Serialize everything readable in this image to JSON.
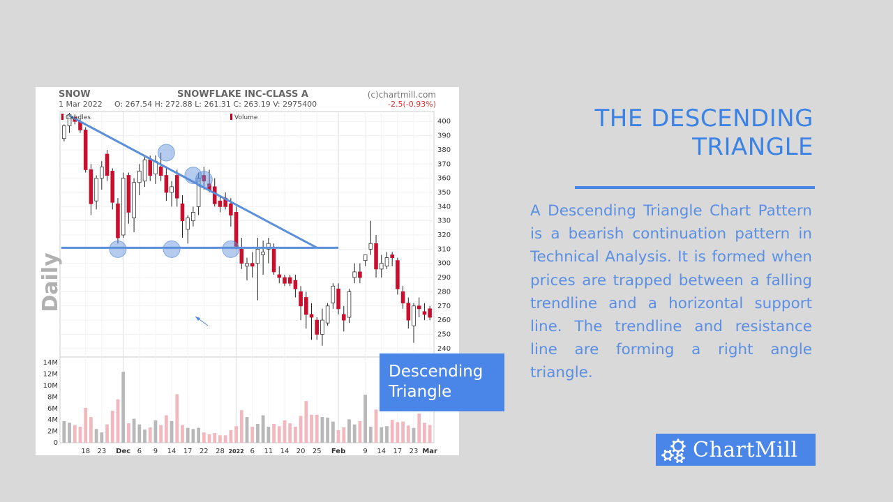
{
  "chart_header": {
    "ticker": "SNOW",
    "company": "SNOWFLAKE INC-CLASS A",
    "source": "(c)chartmill.com",
    "date": "1 Mar 2022",
    "ohlcv": "O: 267.54  H: 272.88  L: 261.31  C: 263.19  V: 2975400",
    "change": "-2.5(-0.93%)",
    "change_color": "#e03030",
    "legend_candles": "Candles",
    "legend_volume": "Volume",
    "period_label": "Daily"
  },
  "slide": {
    "title_line1": "THE DESCENDING",
    "title_line2": "TRIANGLE",
    "description": "A Descending Triangle Chart Pattern is a bearish continuation pattern in Technical Analysis. It is formed when prices are trapped between a falling trendline and a horizontal support line. The trendline and resistance line are forming a right angle triangle.",
    "callout_line1": "Descending",
    "callout_line2": "Triangle",
    "logo_text": "ChartMill",
    "accent": "#4a86e8"
  },
  "chart_data": {
    "type": "candlestick",
    "title": "SNOWFLAKE INC-CLASS A",
    "y_ticks": [
      400,
      390,
      380,
      370,
      360,
      350,
      340,
      330,
      320,
      310,
      300,
      290,
      280,
      270,
      260,
      250,
      240
    ],
    "ylim": [
      235,
      407
    ],
    "volume_ticks": [
      "14M",
      "12M",
      "10M",
      "8M",
      "6M",
      "4M",
      "2M",
      "0"
    ],
    "volume_lim": [
      0,
      15
    ],
    "x_ticks": [
      {
        "label": "18",
        "i": 4
      },
      {
        "label": "23",
        "i": 7
      },
      {
        "label": "Dec",
        "i": 11
      },
      {
        "label": "6",
        "i": 14
      },
      {
        "label": "9",
        "i": 17
      },
      {
        "label": "14",
        "i": 20
      },
      {
        "label": "17",
        "i": 23
      },
      {
        "label": "22",
        "i": 26
      },
      {
        "label": "28",
        "i": 29
      },
      {
        "label": "2022",
        "i": 32
      },
      {
        "label": "6",
        "i": 35
      },
      {
        "label": "11",
        "i": 38
      },
      {
        "label": "14",
        "i": 41
      },
      {
        "label": "20",
        "i": 44
      },
      {
        "label": "25",
        "i": 47
      },
      {
        "label": "Feb",
        "i": 51
      },
      {
        "label": "9",
        "i": 56
      },
      {
        "label": "14",
        "i": 59
      },
      {
        "label": "17",
        "i": 62
      },
      {
        "label": "23",
        "i": 65
      },
      {
        "label": "Mar",
        "i": 68
      }
    ],
    "candles": [
      [
        388,
        398,
        386,
        397
      ],
      [
        397,
        406,
        392,
        405
      ],
      [
        403,
        405,
        398,
        400
      ],
      [
        400,
        402,
        392,
        394
      ],
      [
        394,
        396,
        364,
        366
      ],
      [
        366,
        370,
        334,
        342
      ],
      [
        344,
        362,
        338,
        360
      ],
      [
        360,
        372,
        352,
        368
      ],
      [
        377,
        380,
        358,
        362
      ],
      [
        365,
        367,
        338,
        343
      ],
      [
        342,
        346,
        314,
        318
      ],
      [
        320,
        364,
        318,
        360
      ],
      [
        362,
        364,
        328,
        336
      ],
      [
        332,
        360,
        322,
        357
      ],
      [
        357,
        370,
        348,
        365
      ],
      [
        358,
        376,
        354,
        373
      ],
      [
        373,
        376,
        358,
        362
      ],
      [
        363,
        376,
        356,
        372
      ],
      [
        368,
        378,
        358,
        362
      ],
      [
        362,
        368,
        344,
        350
      ],
      [
        350,
        358,
        340,
        354
      ],
      [
        362,
        366,
        340,
        346
      ],
      [
        342,
        348,
        318,
        330
      ],
      [
        324,
        334,
        314,
        332
      ],
      [
        330,
        340,
        326,
        336
      ],
      [
        340,
        364,
        334,
        360
      ],
      [
        362,
        368,
        352,
        358
      ],
      [
        356,
        366,
        350,
        352
      ],
      [
        354,
        360,
        340,
        342
      ],
      [
        344,
        348,
        336,
        340
      ],
      [
        346,
        350,
        338,
        340
      ],
      [
        342,
        346,
        326,
        334
      ],
      [
        336,
        340,
        310,
        312
      ],
      [
        310,
        318,
        296,
        300
      ],
      [
        298,
        304,
        288,
        300
      ],
      [
        300,
        308,
        290,
        298
      ],
      [
        300,
        318,
        274,
        310
      ],
      [
        306,
        316,
        292,
        308
      ],
      [
        310,
        318,
        300,
        314
      ],
      [
        310,
        314,
        292,
        294
      ],
      [
        292,
        298,
        286,
        290
      ],
      [
        290,
        292,
        284,
        286
      ],
      [
        290,
        292,
        284,
        286
      ],
      [
        288,
        292,
        276,
        282
      ],
      [
        280,
        284,
        260,
        270
      ],
      [
        276,
        280,
        254,
        264
      ],
      [
        264,
        272,
        246,
        262
      ],
      [
        260,
        262,
        246,
        250
      ],
      [
        250,
        268,
        242,
        260
      ],
      [
        258,
        272,
        256,
        270
      ],
      [
        272,
        286,
        268,
        284
      ],
      [
        282,
        286,
        264,
        268
      ],
      [
        264,
        270,
        252,
        260
      ],
      [
        262,
        282,
        258,
        280
      ],
      [
        290,
        300,
        286,
        294
      ],
      [
        294,
        300,
        286,
        290
      ],
      [
        302,
        306,
        298,
        306
      ],
      [
        310,
        330,
        306,
        314
      ],
      [
        314,
        320,
        290,
        296
      ],
      [
        296,
        306,
        290,
        300
      ],
      [
        298,
        308,
        296,
        304
      ],
      [
        306,
        308,
        298,
        304
      ],
      [
        302,
        304,
        278,
        282
      ],
      [
        280,
        284,
        268,
        272
      ],
      [
        272,
        276,
        254,
        260
      ],
      [
        256,
        272,
        244,
        270
      ],
      [
        270,
        276,
        262,
        268
      ],
      [
        266,
        272,
        260,
        264
      ],
      [
        268,
        270,
        260,
        262
      ]
    ],
    "volume": [
      3.8,
      3.5,
      3.1,
      2.8,
      6.1,
      4.5,
      2.4,
      1.8,
      3.2,
      5.6,
      7.6,
      12.4,
      3.4,
      4.2,
      3.2,
      2.3,
      2.7,
      3.9,
      3.1,
      4.8,
      3.8,
      8.5,
      3.1,
      2.6,
      2.4,
      2.6,
      1.8,
      1.5,
      1.7,
      1.3,
      1.3,
      2.2,
      2.9,
      5.7,
      4.5,
      2.8,
      3.3,
      4.8,
      2.8,
      3.3,
      2.9,
      3.9,
      3.4,
      2.8,
      4.7,
      7.3,
      4.9,
      4.9,
      4.5,
      4.4,
      3.7,
      2.2,
      2.7,
      4.1,
      3.2,
      3.8,
      8.4,
      2.8,
      5.8,
      2.7,
      2.9,
      4.0,
      3.6,
      3.7,
      3.0,
      2.6,
      5.1,
      3.5,
      3.1
    ],
    "trendline": {
      "from": [
        1,
        404
      ],
      "to": [
        47,
        311
      ]
    },
    "support_line": 311,
    "touch_points": [
      [
        10,
        310
      ],
      [
        19,
        378
      ],
      [
        20,
        310
      ],
      [
        24,
        362
      ],
      [
        26,
        359
      ],
      [
        31,
        310
      ]
    ]
  }
}
